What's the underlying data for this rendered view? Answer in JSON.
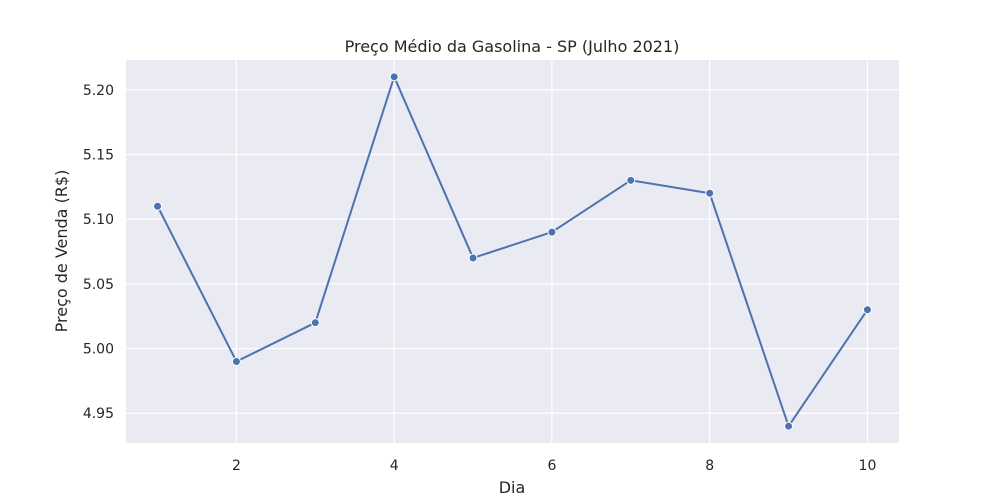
{
  "chart_data": {
    "type": "line",
    "title": "Preço Médio da Gasolina - SP (Julho 2021)",
    "xlabel": "Dia",
    "ylabel": "Preço de Venda (R$)",
    "xlim": [
      0.6,
      10.4
    ],
    "ylim": [
      4.927,
      5.223
    ],
    "xticks": [
      2,
      4,
      6,
      8,
      10
    ],
    "xtick_labels": [
      "2",
      "4",
      "6",
      "8",
      "10"
    ],
    "yticks": [
      4.95,
      5.0,
      5.05,
      5.1,
      5.15,
      5.2
    ],
    "ytick_labels": [
      "4.95",
      "5.00",
      "5.05",
      "5.10",
      "5.15",
      "5.20"
    ],
    "grid": true,
    "series": [
      {
        "x": [
          1,
          2,
          3,
          4,
          5,
          6,
          7,
          8,
          9,
          10
        ],
        "y": [
          5.11,
          4.99,
          5.02,
          5.21,
          5.07,
          5.09,
          5.13,
          5.12,
          4.94,
          5.03
        ],
        "color": "#4c72b0",
        "marker": "circle"
      }
    ],
    "background_color": "#eaeaf2",
    "grid_color": "#ffffff"
  }
}
